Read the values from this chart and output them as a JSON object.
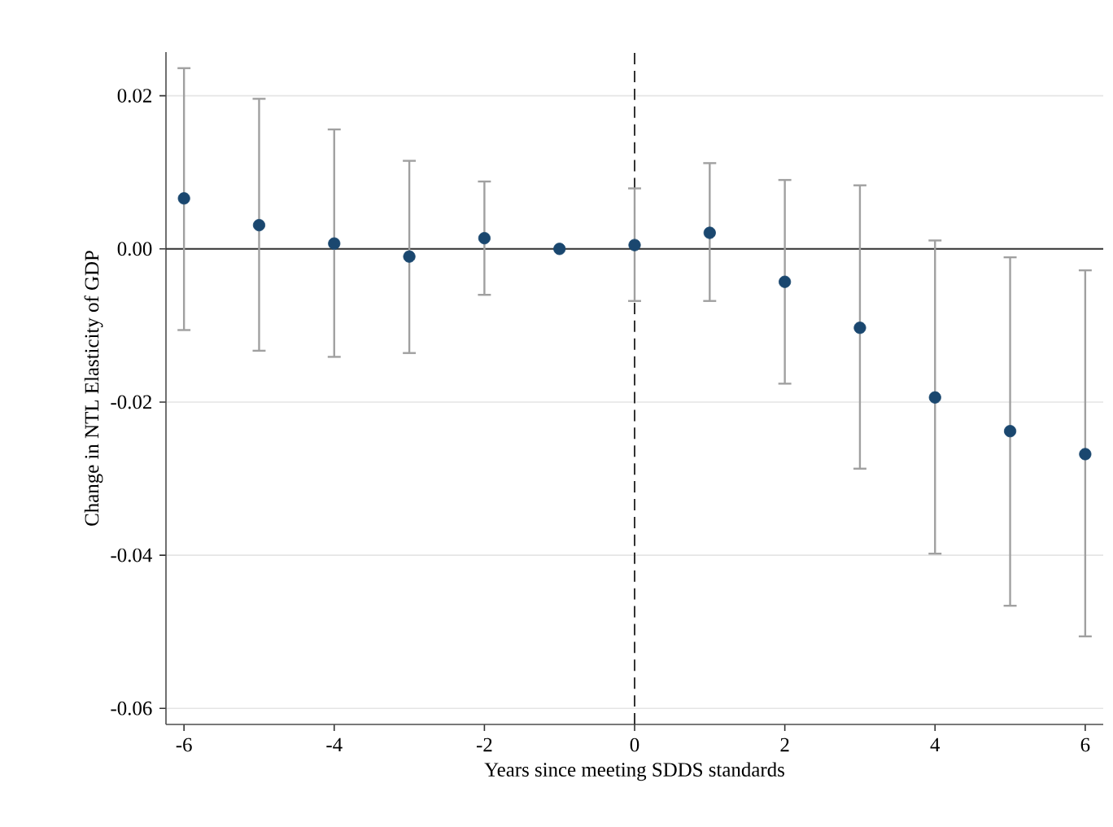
{
  "chart_data": {
    "type": "scatter",
    "xlabel": "Years since meeting SDDS standards",
    "ylabel": "Change in NTL Elasticity of GDP",
    "x": [
      -6,
      -5,
      -4,
      -3,
      -2,
      -1,
      0,
      1,
      2,
      3,
      4,
      5,
      6
    ],
    "series": [
      {
        "color": "#1a476f",
        "values": [
          0.0066,
          0.0031,
          0.0007,
          -0.001,
          0.0014,
          0.0,
          0.0005,
          0.0021,
          -0.0043,
          -0.0103,
          -0.0194,
          -0.0238,
          -0.0268
        ],
        "errors": [
          [
            -0.0106,
            0.0236
          ],
          [
            -0.0133,
            0.0196
          ],
          [
            -0.0141,
            0.0156
          ],
          [
            -0.0136,
            0.0115
          ],
          [
            -0.006,
            0.0088
          ],
          null,
          [
            -0.0068,
            0.0079
          ],
          [
            -0.0068,
            0.0112
          ],
          [
            -0.0176,
            0.009
          ],
          [
            -0.0287,
            0.0083
          ],
          [
            -0.0398,
            0.0011
          ],
          [
            -0.0466,
            -0.0011
          ],
          [
            -0.0506,
            -0.0028
          ]
        ]
      }
    ],
    "marker": "circle",
    "xlim": [
      -6.24,
      6.24
    ],
    "ylim": [
      -0.0621,
      0.0257
    ],
    "xticks": [
      -6,
      -4,
      -2,
      0,
      2,
      4,
      6
    ],
    "yticks": [
      {
        "value": -0.06,
        "label": "-0.06"
      },
      {
        "value": -0.04,
        "label": "-0.04"
      },
      {
        "value": -0.02,
        "label": "-0.02"
      },
      {
        "value": 0,
        "label": "0.00"
      },
      {
        "value": 0.02,
        "label": "0.02"
      }
    ],
    "grid": "y",
    "ref_lines": [
      {
        "axis": "y",
        "value": 0,
        "color": "#333333",
        "line_style": "solid"
      },
      {
        "axis": "x",
        "value": 0,
        "color": "#333333",
        "line_style": "dashed"
      }
    ]
  }
}
